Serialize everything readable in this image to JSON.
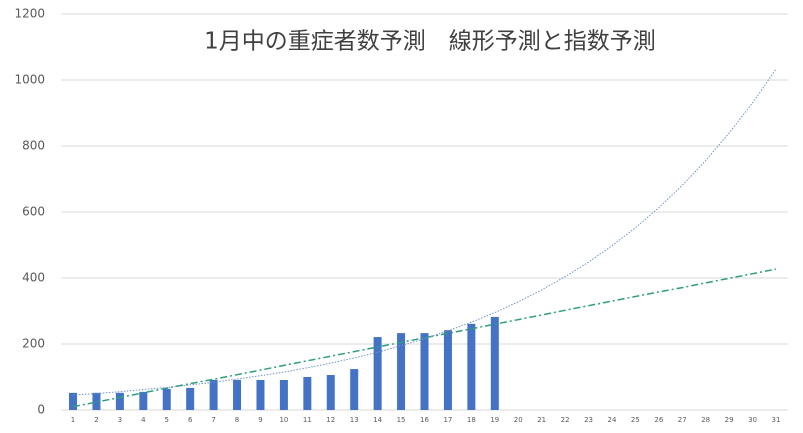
{
  "chart_data": {
    "type": "bar",
    "title": "1月中の重症者数予測　線形予測と指数予測",
    "categories": [
      1,
      2,
      3,
      4,
      5,
      6,
      7,
      8,
      9,
      10,
      11,
      12,
      13,
      14,
      15,
      16,
      17,
      18,
      19,
      20,
      21,
      22,
      23,
      24,
      25,
      26,
      27,
      28,
      29,
      30,
      31
    ],
    "values": [
      52,
      52,
      52,
      55,
      64,
      67,
      91,
      91,
      91,
      91,
      100,
      106,
      124,
      221,
      233,
      233,
      242,
      261,
      282,
      null,
      null,
      null,
      null,
      null,
      null,
      null,
      null,
      null,
      null,
      null,
      null
    ],
    "color": "#4472c4",
    "trendlines": [
      {
        "color": "#2e9e7e",
        "line_style": "dash-dot",
        "values": [
          10,
          24,
          38,
          52,
          66,
          80,
          93,
          107,
          121,
          135,
          149,
          163,
          177,
          191,
          205,
          219,
          232,
          246,
          260,
          274,
          288,
          302,
          316,
          330,
          344,
          358,
          371,
          385,
          399,
          413,
          427
        ]
      },
      {
        "color": "#6d93c9",
        "line_style": "dotted",
        "values": [
          45,
          50,
          55.5,
          62,
          68,
          76,
          84,
          94,
          104,
          115,
          128,
          142,
          158,
          175,
          195,
          216,
          240,
          266,
          295,
          328,
          364,
          404,
          448,
          498,
          552,
          613,
          681,
          756,
          839,
          931,
          1033
        ]
      }
    ],
    "ylim": [
      0,
      1200
    ],
    "yticks": [
      0,
      200,
      400,
      600,
      800,
      1000,
      1200
    ],
    "grid": true
  }
}
